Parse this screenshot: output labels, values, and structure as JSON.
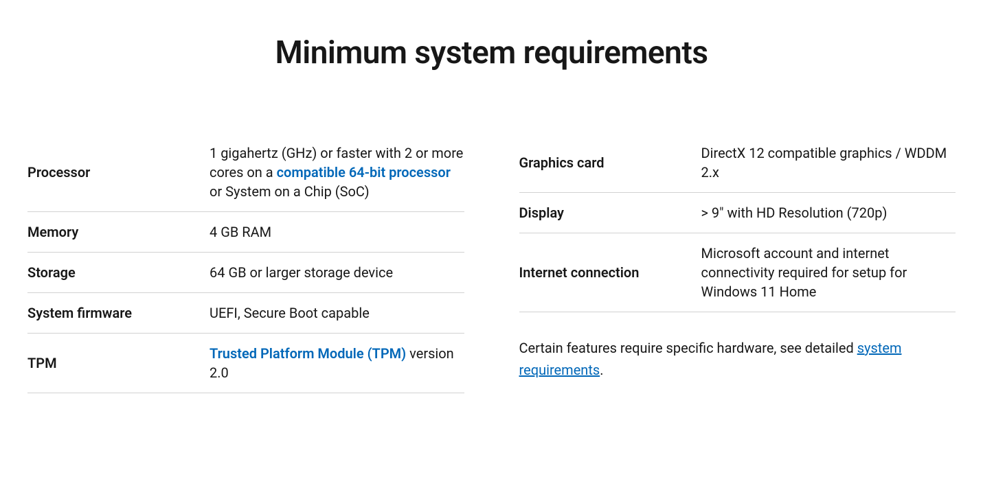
{
  "title": "Minimum system requirements",
  "colors": {
    "text": "#171717",
    "link": "#0067b8",
    "border": "#d1d1d1",
    "background": "#ffffff"
  },
  "left": {
    "processor": {
      "label": "Processor",
      "value_prefix": "1 gigahertz (GHz) or faster with 2 or more cores on a ",
      "link_text": "compatible 64-bit processor",
      "value_suffix": " or System on a Chip (SoC)"
    },
    "memory": {
      "label": "Memory",
      "value": "4 GB RAM"
    },
    "storage": {
      "label": "Storage",
      "value": "64 GB or larger storage device"
    },
    "firmware": {
      "label": "System firmware",
      "value": "UEFI, Secure Boot capable"
    },
    "tpm": {
      "label": "TPM",
      "link_text": "Trusted Platform Module (TPM)",
      "value_suffix": " version 2.0"
    }
  },
  "right": {
    "graphics": {
      "label": "Graphics card",
      "value": "DirectX 12 compatible graphics / WDDM 2.x"
    },
    "display": {
      "label": "Display",
      "value": "> 9\" with HD Resolution (720p)"
    },
    "internet": {
      "label": "Internet connection",
      "value": "Microsoft account and internet connectivity required for setup for Windows 11 Home"
    }
  },
  "footnote": {
    "prefix": "Certain features require specific hardware, see detailed ",
    "link_text": "system requirements",
    "suffix": "."
  }
}
